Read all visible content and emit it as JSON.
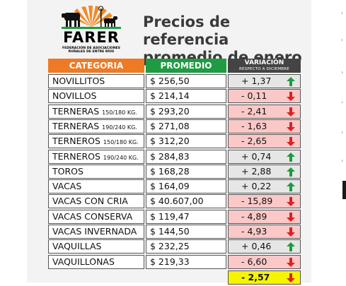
{
  "logo": {
    "name": "FARER",
    "subtitle_line1": "Federación de Asociaciones",
    "subtitle_line2": "Rurales de Entre Ríos"
  },
  "title_line1": "Precios de referencia",
  "title_line2": "promedio de enero",
  "headers": {
    "category": "CATEGORIA",
    "average": "PROMEDIO",
    "variation": "VARIACIÓN",
    "variation_sub": "RESPECTO A DICIEMBRE"
  },
  "colors": {
    "category_header": "#ee7a25",
    "average_header": "#1f9b43",
    "variation_header": "#444444",
    "negative_fill": "#fbc8c8",
    "positive_fill": "#e6e6e6",
    "total_fill": "#f6f400",
    "up_arrow": "#1e9b3e",
    "down_arrow": "#e02020"
  },
  "rows": [
    {
      "category": "NOVILLITOS",
      "spec": "",
      "price": "$ 256,50",
      "variation": "+ 1,37",
      "direction": "up"
    },
    {
      "category": "NOVILLOS",
      "spec": "",
      "price": "$ 214,14",
      "variation": "- 0,11",
      "direction": "down"
    },
    {
      "category": "TERNERAS",
      "spec": "150/180 KG.",
      "price": "$ 293,20",
      "variation": "- 2,41",
      "direction": "down"
    },
    {
      "category": "TERNERAS",
      "spec": "190/240 KG.",
      "price": "$ 271,08",
      "variation": "- 1,63",
      "direction": "down"
    },
    {
      "category": "TERNEROS",
      "spec": "150/180 KG.",
      "price": "$ 312,20",
      "variation": "- 2,65",
      "direction": "down"
    },
    {
      "category": "TERNEROS",
      "spec": "190/240 KG.",
      "price": "$ 284,83",
      "variation": "+ 0,74",
      "direction": "up"
    },
    {
      "category": "TOROS",
      "spec": "",
      "price": "$ 168,28",
      "variation": "+ 2,88",
      "direction": "up"
    },
    {
      "category": "VACAS",
      "spec": "",
      "price": "$ 164,09",
      "variation": "+ 0,22",
      "direction": "up"
    },
    {
      "category": "VACAS CON CRIA",
      "spec": "",
      "price": "$ 40.607,00",
      "variation": "- 15,89",
      "direction": "down"
    },
    {
      "category": "VACAS CONSERVA",
      "spec": "",
      "price": "$ 119,47",
      "variation": "- 4,89",
      "direction": "down"
    },
    {
      "category": "VACAS INVERNADA",
      "spec": "",
      "price": "$ 144,50",
      "variation": "- 4,93",
      "direction": "down"
    },
    {
      "category": "VAQUILLAS",
      "spec": "",
      "price": "$ 232,25",
      "variation": "+ 0,46",
      "direction": "up"
    },
    {
      "category": "VAQUILLONAS",
      "spec": "",
      "price": "$ 219,33",
      "variation": "- 6,60",
      "direction": "down"
    }
  ],
  "total": {
    "variation": "- 2,57",
    "direction": "down"
  }
}
